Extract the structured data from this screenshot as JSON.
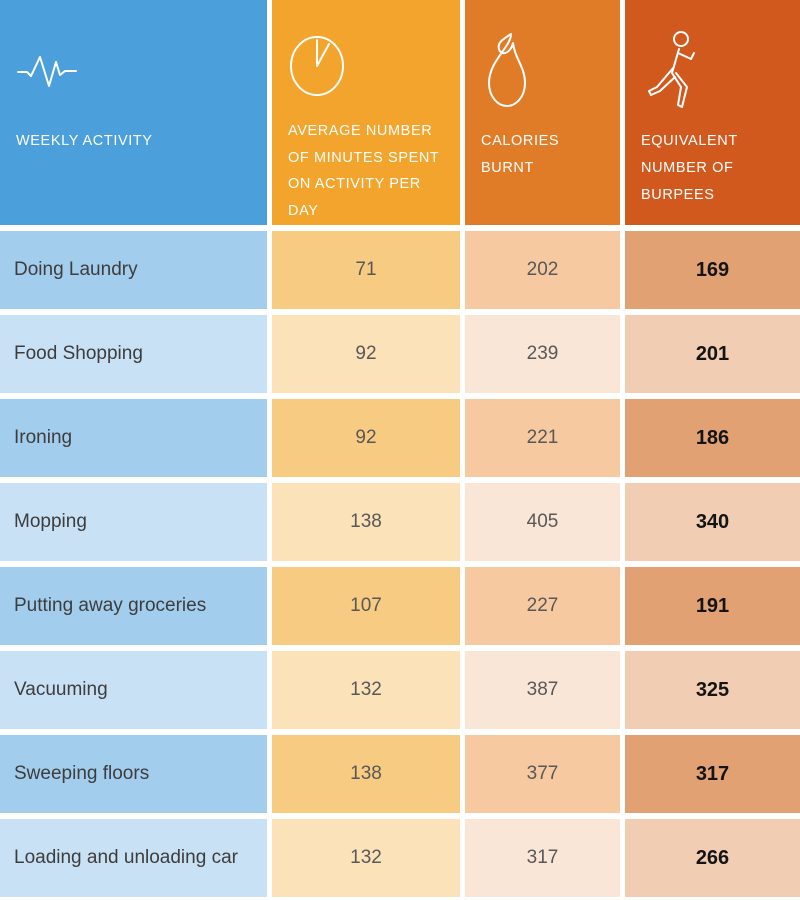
{
  "table": {
    "columns": [
      {
        "label": "WEEKLY ACTIVITY",
        "icon": "pulse-icon"
      },
      {
        "label": "AVERAGE NUMBER OF MINUTES SPENT ON ACTIVITY PER DAY",
        "icon": "clock-icon"
      },
      {
        "label": "CALORIES BURNT",
        "icon": "flame-icon"
      },
      {
        "label": "EQUIVALENT NUMBER OF BURPEES",
        "icon": "walking-person-icon"
      }
    ],
    "rows": [
      {
        "activity": "Doing Laundry",
        "minutes": "71",
        "calories": "202",
        "burpees": "169"
      },
      {
        "activity": "Food Shopping",
        "minutes": "92",
        "calories": "239",
        "burpees": "201"
      },
      {
        "activity": "Ironing",
        "minutes": "92",
        "calories": "221",
        "burpees": "186"
      },
      {
        "activity": "Mopping",
        "minutes": "138",
        "calories": "405",
        "burpees": "340"
      },
      {
        "activity": "Putting away groceries",
        "minutes": "107",
        "calories": "227",
        "burpees": "191"
      },
      {
        "activity": "Vacuuming",
        "minutes": "132",
        "calories": "387",
        "burpees": "325"
      },
      {
        "activity": "Sweeping floors",
        "minutes": "138",
        "calories": "377",
        "burpees": "317"
      },
      {
        "activity": "Loading and unloading car",
        "minutes": "132",
        "calories": "317",
        "burpees": "266"
      }
    ]
  },
  "colors": {
    "header_activity": "#4BA0DB",
    "header_minutes": "#F2A42C",
    "header_calories": "#E07C28",
    "header_burpees": "#D2591E"
  },
  "chart_data": {
    "type": "table",
    "columns": [
      "Weekly Activity",
      "Average number of minutes spent on activity per day",
      "Calories burnt",
      "Equivalent number of burpees"
    ],
    "rows": [
      [
        "Doing Laundry",
        71,
        202,
        169
      ],
      [
        "Food Shopping",
        92,
        239,
        201
      ],
      [
        "Ironing",
        92,
        221,
        186
      ],
      [
        "Mopping",
        138,
        405,
        340
      ],
      [
        "Putting away groceries",
        107,
        227,
        191
      ],
      [
        "Vacuuming",
        132,
        387,
        325
      ],
      [
        "Sweeping floors",
        138,
        377,
        317
      ],
      [
        "Loading and unloading car",
        132,
        317,
        266
      ]
    ]
  }
}
